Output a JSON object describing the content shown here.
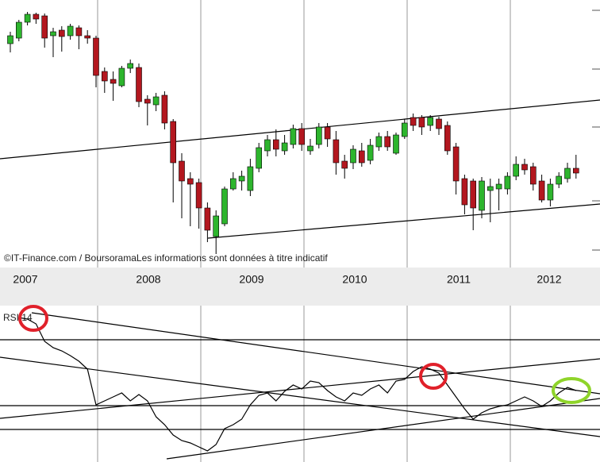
{
  "chart_data": [
    {
      "type": "candlestick",
      "watermark": "©IT-Finance.com / BoursoramaLes informations sont données à titre indicatif",
      "years": [
        "2007",
        "2008",
        "2009",
        "2010",
        "2011",
        "2012"
      ],
      "up_color": "#2db52d",
      "down_color": "#b3171f",
      "ylim": [
        0,
        335
      ],
      "open": [
        280,
        287,
        307,
        317,
        315,
        290,
        297,
        290,
        300,
        290,
        287,
        245,
        235,
        227,
        249,
        250,
        210,
        203,
        215,
        182,
        132,
        110,
        105,
        73,
        37,
        53,
        97,
        107,
        95,
        123,
        145,
        159,
        145,
        153,
        173,
        145,
        153,
        175,
        159,
        132,
        130,
        145,
        133,
        150,
        163,
        142,
        163,
        187,
        187,
        177,
        185,
        177,
        150,
        110,
        107,
        70,
        95,
        97,
        97,
        113,
        128,
        125,
        107,
        83,
        103,
        110,
        123
      ],
      "close": [
        290,
        307,
        317,
        311,
        287,
        295,
        289,
        302,
        290,
        287,
        240,
        233,
        230,
        249,
        255,
        207,
        205,
        213,
        180,
        130,
        107,
        103,
        73,
        45,
        63,
        97,
        110,
        113,
        125,
        149,
        159,
        147,
        155,
        173,
        153,
        151,
        175,
        160,
        130,
        123,
        147,
        130,
        152,
        163,
        150,
        165,
        180,
        177,
        175,
        187,
        173,
        145,
        107,
        77,
        73,
        107,
        100,
        103,
        113,
        128,
        121,
        103,
        83,
        103,
        113,
        123,
        117
      ],
      "high": [
        295,
        310,
        320,
        319,
        318,
        300,
        302,
        305,
        303,
        297,
        290,
        250,
        245,
        252,
        260,
        255,
        215,
        218,
        220,
        185,
        142,
        118,
        110,
        80,
        70,
        100,
        118,
        120,
        135,
        155,
        165,
        172,
        165,
        178,
        180,
        160,
        180,
        180,
        170,
        140,
        152,
        155,
        160,
        168,
        170,
        168,
        185,
        192,
        190,
        190,
        188,
        182,
        155,
        115,
        110,
        112,
        110,
        110,
        118,
        138,
        135,
        130,
        115,
        110,
        118,
        130,
        140
      ],
      "low": [
        269,
        283,
        303,
        305,
        275,
        263,
        270,
        285,
        273,
        280,
        225,
        218,
        208,
        225,
        243,
        200,
        177,
        195,
        172,
        80,
        60,
        50,
        47,
        30,
        15,
        50,
        95,
        95,
        88,
        118,
        138,
        138,
        140,
        148,
        145,
        140,
        148,
        150,
        115,
        110,
        122,
        125,
        128,
        145,
        145,
        140,
        160,
        170,
        165,
        170,
        165,
        140,
        90,
        65,
        45,
        60,
        55,
        70,
        90,
        108,
        115,
        95,
        80,
        75,
        98,
        105,
        110
      ]
    },
    {
      "type": "line",
      "title": "RSI 14",
      "color": "#000000",
      "ylim": [
        0,
        197
      ],
      "values": [
        null,
        182,
        180,
        174,
        152,
        144,
        140,
        134,
        127,
        117,
        72,
        77,
        82,
        87,
        77,
        85,
        77,
        57,
        47,
        34,
        27,
        24,
        19,
        14,
        22,
        42,
        47,
        54,
        72,
        84,
        87,
        77,
        89,
        97,
        92,
        102,
        100,
        90,
        82,
        77,
        87,
        84,
        92,
        97,
        87,
        102,
        104,
        114,
        120,
        117,
        112,
        97,
        82,
        67,
        54,
        62,
        67,
        70,
        72,
        77,
        82,
        77,
        70,
        77,
        87,
        94,
        90
      ]
    }
  ]
}
